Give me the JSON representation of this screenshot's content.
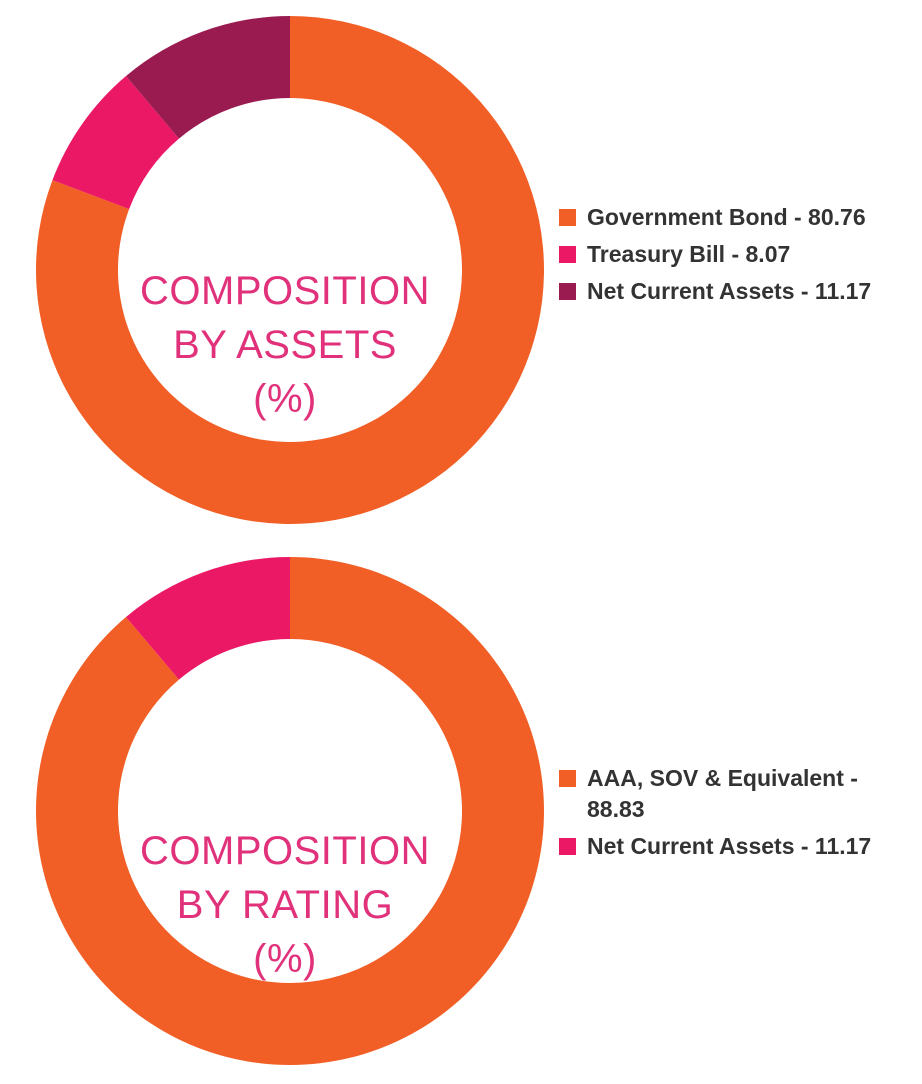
{
  "colors": {
    "orange": "#f15f26",
    "pink": "#eb1866",
    "maroon": "#9a1b50",
    "title": "#e0317a",
    "legend_text": "#333333"
  },
  "chart_data": [
    {
      "type": "pie",
      "title_lines": [
        "COMPOSITION",
        "BY ASSETS",
        "(%)"
      ],
      "slices": [
        {
          "label": "Government Bond - 80.76",
          "name": "Government Bond",
          "value": 80.76,
          "color": "#f15f26"
        },
        {
          "label": "Treasury Bill - 8.07",
          "name": "Treasury Bill",
          "value": 8.07,
          "color": "#eb1866"
        },
        {
          "label": "Net Current Assets - 11.17",
          "name": "Net Current Assets",
          "value": 11.17,
          "color": "#9a1b50"
        }
      ],
      "legend_position": "right"
    },
    {
      "type": "pie",
      "title_lines": [
        "COMPOSITION",
        "BY RATING",
        "(%)"
      ],
      "slices": [
        {
          "label": "AAA, SOV & Equivalent - 88.83",
          "name": "AAA, SOV & Equivalent",
          "value": 88.83,
          "color": "#f15f26"
        },
        {
          "label": "Net Current Assets - 11.17",
          "name": "Net Current Assets",
          "value": 11.17,
          "color": "#eb1866"
        }
      ],
      "legend_position": "right"
    }
  ]
}
